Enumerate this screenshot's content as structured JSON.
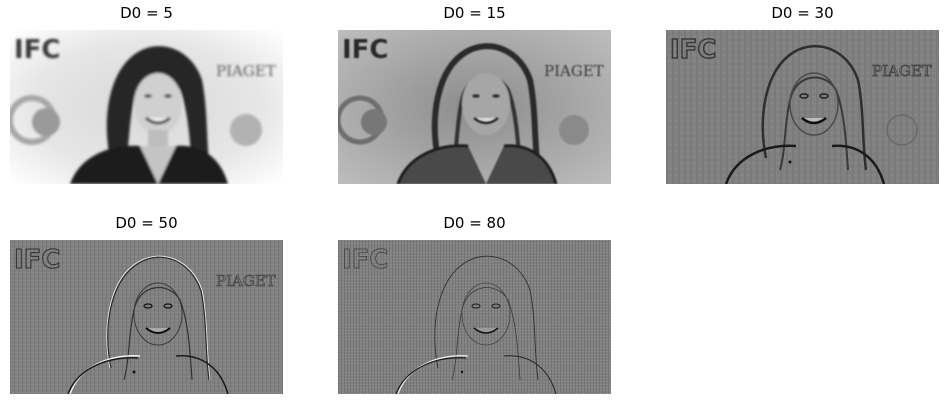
{
  "panels": [
    {
      "title": "D0 = 5"
    },
    {
      "title": "D0 = 15"
    },
    {
      "title": "D0 = 30"
    },
    {
      "title": "D0 = 50"
    },
    {
      "title": "D0 = 80"
    }
  ],
  "image_text": {
    "logo": "IFC",
    "sign": "PIAGET"
  }
}
